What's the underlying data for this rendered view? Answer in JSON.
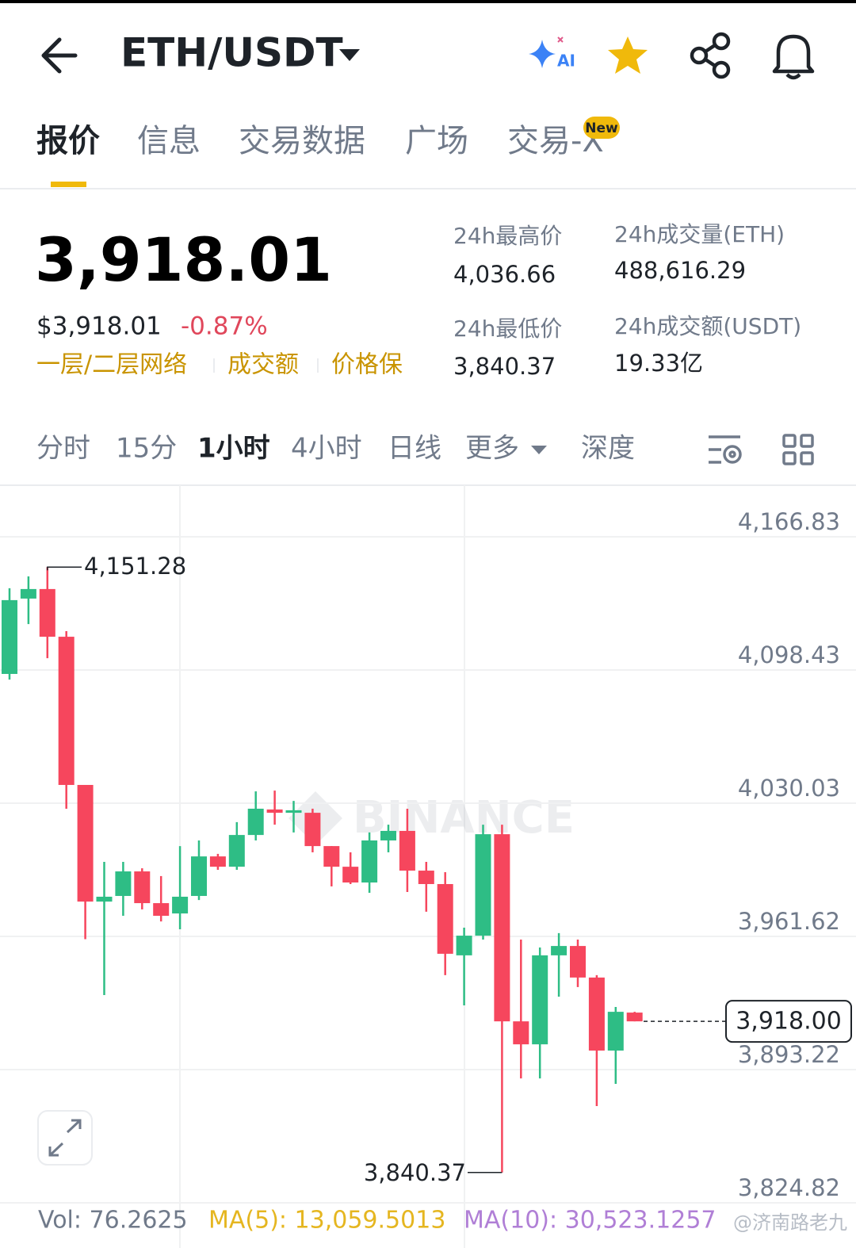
{
  "header": {
    "pair": "ETH/USDT",
    "ai_label": "AI"
  },
  "tabs": {
    "items": [
      "报价",
      "信息",
      "交易数据",
      "广场",
      "交易-X"
    ],
    "badge": "New"
  },
  "price": {
    "last": "3,918.01",
    "usd": "$3,918.01",
    "change": "-0.87%",
    "tags": [
      "一层/二层网络",
      "成交额",
      "价格保"
    ]
  },
  "stats": [
    {
      "label": "24h最高价",
      "value": "4,036.66"
    },
    {
      "label": "24h成交量(ETH)",
      "value": "488,616.29"
    },
    {
      "label": "24h最低价",
      "value": "3,840.37"
    },
    {
      "label": "24h成交额(USDT)",
      "value": "19.33亿"
    }
  ],
  "intervals": [
    "分时",
    "15分",
    "1小时",
    "4小时",
    "日线",
    "更多",
    "深度"
  ],
  "chart": {
    "type": "candlestick",
    "watermark": "BINANCE",
    "up_color": "#2ebd85",
    "down_color": "#f6465d",
    "ylim": [
      3824.82,
      4166.83
    ],
    "yticks": [
      {
        "value": 4166.83,
        "label": "4,166.83"
      },
      {
        "value": 4098.43,
        "label": "4,098.43"
      },
      {
        "value": 4030.03,
        "label": "4,030.03"
      },
      {
        "value": 3961.62,
        "label": "3,961.62"
      },
      {
        "value": 3893.22,
        "label": "3,893.22"
      },
      {
        "value": 3824.82,
        "label": "3,824.82"
      }
    ],
    "last_price": {
      "value": 3918.0,
      "label": "3,918.00"
    },
    "high_note": {
      "value": 4151.28,
      "label": "4,151.28"
    },
    "low_note": {
      "value": 3840.37,
      "label": "3,840.37"
    },
    "candles": [
      {
        "open": 4096.4,
        "high": 4140.4,
        "low": 4093.5,
        "close": 4134.3
      },
      {
        "open": 4135.1,
        "high": 4146.5,
        "low": 4122.0,
        "close": 4140.0
      },
      {
        "open": 4140.0,
        "high": 4151.28,
        "low": 4104.5,
        "close": 4115.5
      },
      {
        "open": 4115.5,
        "high": 4118.4,
        "low": 4027.2,
        "close": 4039.4
      },
      {
        "open": 4039.4,
        "high": 4039.4,
        "low": 3960.2,
        "close": 3979.5
      },
      {
        "open": 3979.5,
        "high": 3999.9,
        "low": 3931.5,
        "close": 3982.0
      },
      {
        "open": 3982.4,
        "high": 3999.9,
        "low": 3972.2,
        "close": 3995.0
      },
      {
        "open": 3995.0,
        "high": 3996.6,
        "low": 3975.5,
        "close": 3978.7
      },
      {
        "open": 3978.7,
        "high": 3992.6,
        "low": 3969.3,
        "close": 3972.2
      },
      {
        "open": 3973.4,
        "high": 4008.0,
        "low": 3965.3,
        "close": 3982.0
      },
      {
        "open": 3982.4,
        "high": 4010.9,
        "low": 3980.3,
        "close": 4002.7
      },
      {
        "open": 4002.7,
        "high": 4004.0,
        "low": 3995.8,
        "close": 3997.4
      },
      {
        "open": 3997.4,
        "high": 4020.3,
        "low": 3995.8,
        "close": 4013.7
      },
      {
        "open": 4013.7,
        "high": 4036.1,
        "low": 4010.9,
        "close": 4027.2
      },
      {
        "open": 4026.8,
        "high": 4036.5,
        "low": 4019.0,
        "close": 4025.1
      },
      {
        "open": 4025.1,
        "high": 4031.2,
        "low": 4015.0,
        "close": 4026.4
      },
      {
        "open": 4025.1,
        "high": 4027.2,
        "low": 4004.8,
        "close": 4008.0
      },
      {
        "open": 4008.0,
        "high": 4008.0,
        "low": 3987.3,
        "close": 3997.4
      },
      {
        "open": 3997.4,
        "high": 4004.8,
        "low": 3988.5,
        "close": 3989.3
      },
      {
        "open": 3989.3,
        "high": 4015.0,
        "low": 3984.0,
        "close": 4010.9
      },
      {
        "open": 4010.9,
        "high": 4019.0,
        "low": 4004.8,
        "close": 4015.8
      },
      {
        "open": 4015.8,
        "high": 4027.2,
        "low": 3984.4,
        "close": 3995.4
      },
      {
        "open": 3995.4,
        "high": 3999.9,
        "low": 3974.3,
        "close": 3988.5
      },
      {
        "open": 3988.5,
        "high": 3994.6,
        "low": 3941.7,
        "close": 3952.7
      },
      {
        "open": 3951.9,
        "high": 3966.1,
        "low": 3926.2,
        "close": 3962.0
      },
      {
        "open": 3962.0,
        "high": 4019.0,
        "low": 3960.0,
        "close": 4014.1
      },
      {
        "open": 4014.1,
        "high": 4019.0,
        "low": 3840.37,
        "close": 3918.0
      },
      {
        "open": 3918.0,
        "high": 3960.0,
        "low": 3888.7,
        "close": 3906.2
      },
      {
        "open": 3906.2,
        "high": 3955.9,
        "low": 3888.7,
        "close": 3951.9
      },
      {
        "open": 3951.9,
        "high": 3963.3,
        "low": 3930.7,
        "close": 3956.7
      },
      {
        "open": 3956.7,
        "high": 3960.0,
        "low": 3935.6,
        "close": 3940.5
      },
      {
        "open": 3940.5,
        "high": 3941.7,
        "low": 3874.5,
        "close": 3903.0
      },
      {
        "open": 3903.0,
        "high": 3925.4,
        "low": 3885.9,
        "close": 3922.9
      },
      {
        "open": 3922.5,
        "high": 3922.9,
        "low": 3918.0,
        "close": 3918.0
      }
    ]
  },
  "footer": {
    "vol": "Vol: 76.2625",
    "ma5": "MA(5): 13,059.5013",
    "ma10": "MA(10): 30,523.1257",
    "credit": "@济南路老九"
  }
}
